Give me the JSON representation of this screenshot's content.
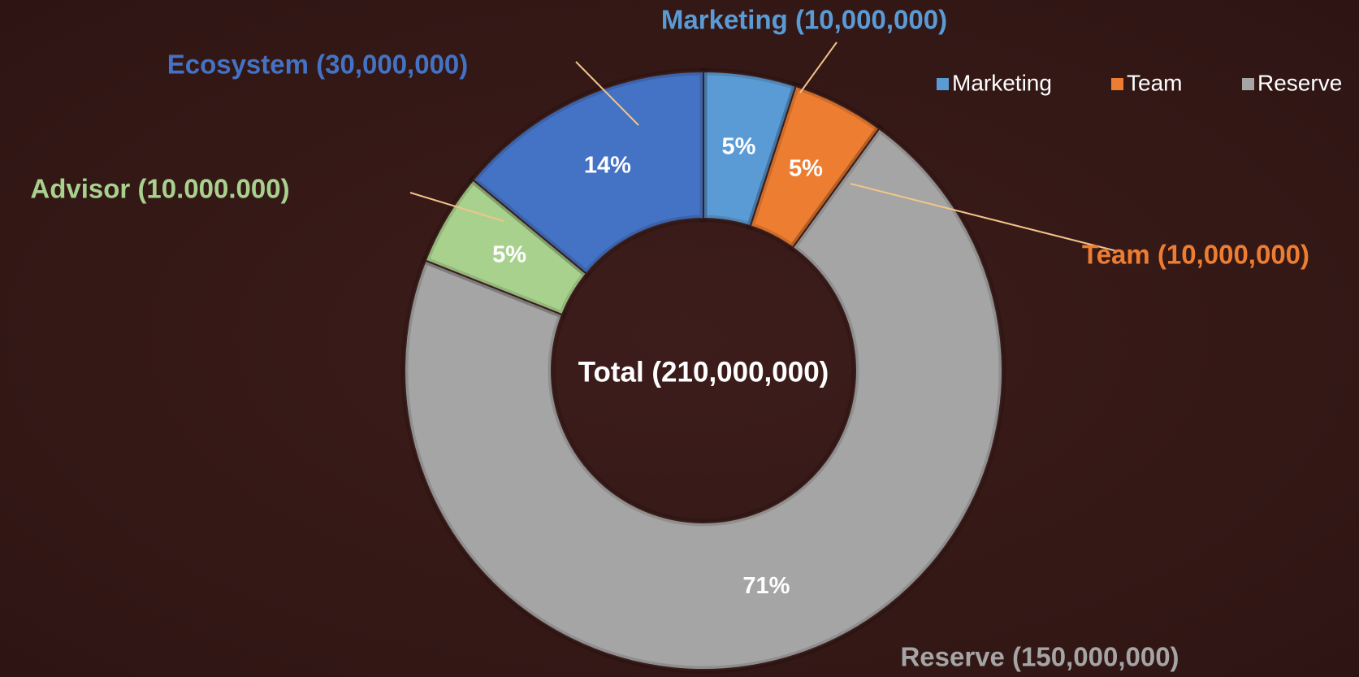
{
  "chart_data": {
    "type": "pie",
    "donut": true,
    "center_label": "Total (210,000,000)",
    "categories": [
      "Marketing",
      "Team",
      "Reserve",
      "Advisor",
      "Ecosystem"
    ],
    "values": [
      5,
      5,
      71,
      5,
      14
    ],
    "value_labels": [
      "5%",
      "5%",
      "71%",
      "5%",
      "14%"
    ],
    "colors": [
      "#5b9bd5",
      "#ed7d31",
      "#a5a5a5",
      "#a9d18e",
      "#4472c4"
    ],
    "callouts": [
      "Marketing (10,000,000)",
      "Team (10,000,000)",
      "Reserve (150,000,000)",
      "Advisor (10.000.000)",
      "Ecosystem (30,000,000)"
    ],
    "legend_entries": [
      "Marketing",
      "Team",
      "Reserve"
    ],
    "legend_position": "top-right"
  }
}
